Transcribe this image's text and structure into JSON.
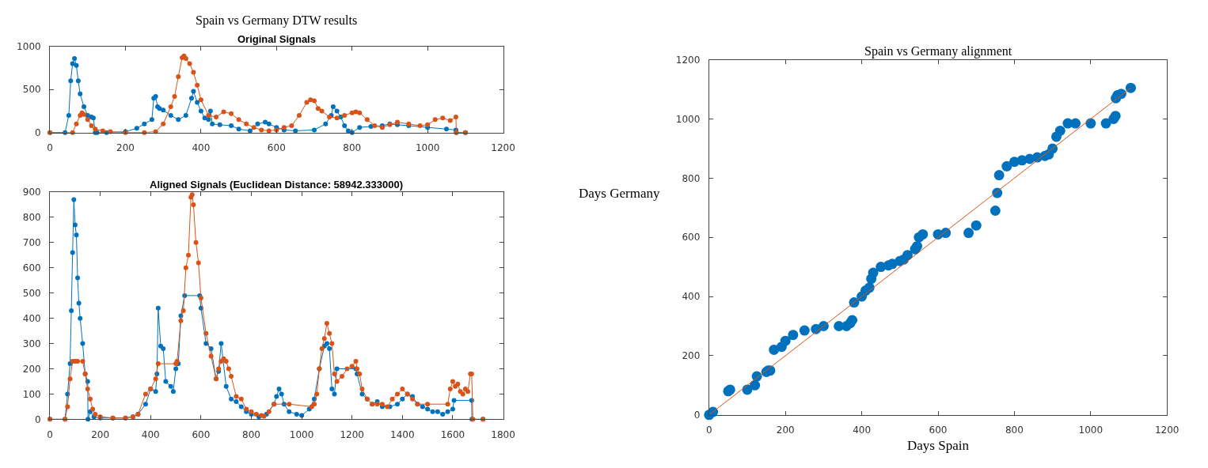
{
  "chart_data": [
    {
      "type": "line",
      "title": "Spain vs Germany DTW results",
      "subtitle": "Original Signals",
      "xlim": [
        0,
        1200
      ],
      "xticks": [
        0,
        200,
        400,
        600,
        800,
        1000,
        1200
      ],
      "ylim": [
        0,
        1000
      ],
      "yticks": [
        0,
        500,
        1000
      ],
      "marker": "circle",
      "line_style": "solid",
      "series": [
        {
          "color": "#0072bd",
          "x": [
            0,
            40,
            50,
            55,
            60,
            65,
            70,
            75,
            80,
            90,
            100,
            110,
            115,
            120,
            125,
            150,
            200,
            230,
            250,
            270,
            275,
            280,
            285,
            290,
            300,
            320,
            340,
            360,
            375,
            380,
            390,
            400,
            410,
            420,
            425,
            430,
            450,
            480,
            500,
            530,
            550,
            570,
            580,
            600,
            620,
            650,
            700,
            730,
            745,
            750,
            760,
            770,
            780,
            790,
            800,
            820,
            850,
            880,
            900,
            920,
            950,
            1000,
            1050,
            1075,
            1076,
            1100
          ],
          "values": [
            0,
            0,
            200,
            600,
            800,
            860,
            780,
            600,
            450,
            300,
            200,
            180,
            170,
            0,
            0,
            0,
            10,
            50,
            100,
            150,
            400,
            420,
            300,
            280,
            260,
            200,
            150,
            200,
            400,
            480,
            350,
            250,
            170,
            150,
            250,
            100,
            90,
            80,
            40,
            20,
            100,
            120,
            100,
            60,
            30,
            20,
            30,
            100,
            200,
            300,
            250,
            180,
            80,
            20,
            0,
            60,
            70,
            80,
            100,
            90,
            80,
            60,
            40,
            30,
            0,
            0
          ]
        },
        {
          "color": "#d95319",
          "x": [
            0,
            60,
            70,
            80,
            85,
            90,
            100,
            110,
            120,
            140,
            160,
            200,
            250,
            280,
            300,
            320,
            330,
            340,
            350,
            355,
            360,
            370,
            380,
            390,
            400,
            420,
            440,
            460,
            480,
            500,
            520,
            540,
            560,
            580,
            600,
            620,
            640,
            660,
            680,
            690,
            700,
            710,
            720,
            740,
            760,
            780,
            800,
            810,
            820,
            840,
            860,
            880,
            900,
            920,
            950,
            980,
            1000,
            1020,
            1040,
            1060,
            1075,
            1076,
            1100
          ],
          "values": [
            0,
            0,
            100,
            200,
            230,
            210,
            150,
            80,
            40,
            20,
            10,
            0,
            0,
            10,
            100,
            300,
            420,
            650,
            870,
            890,
            860,
            800,
            700,
            550,
            380,
            200,
            180,
            240,
            220,
            150,
            100,
            60,
            30,
            20,
            30,
            60,
            80,
            200,
            350,
            380,
            370,
            280,
            250,
            180,
            170,
            200,
            230,
            240,
            230,
            150,
            80,
            60,
            90,
            120,
            100,
            80,
            90,
            150,
            170,
            140,
            180,
            0,
            0
          ]
        }
      ]
    },
    {
      "type": "line",
      "title": "Aligned Signals (Euclidean Distance: 58942.333000)",
      "xlim": [
        0,
        1800
      ],
      "xticks": [
        0,
        200,
        400,
        600,
        800,
        1000,
        1200,
        1400,
        1600,
        1800
      ],
      "ylim": [
        0,
        900
      ],
      "yticks": [
        0,
        100,
        200,
        300,
        400,
        500,
        600,
        700,
        800,
        900
      ],
      "marker": "circle",
      "line_style": "solid",
      "series": [
        {
          "color": "#0072bd",
          "x": [
            0,
            60,
            70,
            80,
            85,
            90,
            95,
            100,
            105,
            110,
            115,
            120,
            130,
            140,
            150,
            151,
            160,
            175,
            200,
            250,
            300,
            330,
            350,
            380,
            400,
            420,
            425,
            430,
            440,
            450,
            460,
            480,
            490,
            500,
            510,
            520,
            535,
            595,
            600,
            620,
            640,
            660,
            670,
            680,
            700,
            720,
            740,
            760,
            780,
            800,
            830,
            860,
            890,
            900,
            910,
            920,
            930,
            950,
            980,
            1000,
            1030,
            1050,
            1070,
            1090,
            1100,
            1110,
            1120,
            1130,
            1140,
            1215,
            1220,
            1240,
            1260,
            1280,
            1300,
            1320,
            1350,
            1380,
            1400,
            1420,
            1440,
            1460,
            1480,
            1500,
            1520,
            1540,
            1560,
            1580,
            1600,
            1605,
            1675,
            1676,
            1720
          ],
          "values": [
            0,
            0,
            100,
            220,
            430,
            660,
            870,
            770,
            730,
            560,
            460,
            400,
            300,
            180,
            150,
            0,
            30,
            10,
            5,
            5,
            5,
            10,
            20,
            60,
            120,
            110,
            180,
            440,
            290,
            280,
            150,
            130,
            110,
            200,
            220,
            410,
            490,
            490,
            440,
            300,
            280,
            160,
            190,
            300,
            130,
            80,
            70,
            50,
            30,
            20,
            10,
            20,
            60,
            90,
            120,
            100,
            60,
            30,
            20,
            15,
            40,
            80,
            200,
            290,
            300,
            280,
            120,
            100,
            200,
            200,
            180,
            100,
            80,
            60,
            70,
            50,
            50,
            60,
            80,
            100,
            90,
            60,
            50,
            40,
            30,
            30,
            20,
            30,
            40,
            75,
            75,
            0,
            0
          ]
        },
        {
          "color": "#d95319",
          "x": [
            0,
            60,
            70,
            80,
            90,
            100,
            110,
            130,
            140,
            150,
            160,
            170,
            180,
            200,
            250,
            300,
            330,
            350,
            380,
            400,
            420,
            430,
            500,
            505,
            520,
            530,
            540,
            550,
            560,
            565,
            570,
            580,
            590,
            600,
            620,
            640,
            660,
            670,
            680,
            690,
            700,
            710,
            720,
            740,
            760,
            780,
            800,
            820,
            840,
            850,
            870,
            890,
            950,
            1040,
            1050,
            1060,
            1070,
            1080,
            1090,
            1100,
            1110,
            1120,
            1130,
            1140,
            1160,
            1180,
            1200,
            1215,
            1220,
            1230,
            1240,
            1260,
            1280,
            1300,
            1320,
            1340,
            1360,
            1380,
            1400,
            1420,
            1440,
            1460,
            1500,
            1580,
            1590,
            1600,
            1610,
            1620,
            1630,
            1640,
            1650,
            1660,
            1670,
            1675,
            1680,
            1720
          ],
          "values": [
            0,
            0,
            50,
            160,
            230,
            230,
            230,
            230,
            180,
            120,
            80,
            40,
            20,
            10,
            5,
            5,
            10,
            20,
            100,
            120,
            160,
            220,
            220,
            230,
            390,
            430,
            600,
            650,
            880,
            890,
            850,
            700,
            620,
            480,
            340,
            250,
            160,
            200,
            230,
            240,
            230,
            200,
            170,
            90,
            80,
            40,
            30,
            20,
            15,
            12,
            30,
            60,
            60,
            50,
            60,
            100,
            200,
            280,
            320,
            380,
            340,
            300,
            180,
            150,
            170,
            200,
            210,
            230,
            200,
            180,
            120,
            80,
            60,
            60,
            60,
            50,
            80,
            100,
            120,
            100,
            80,
            60,
            60,
            60,
            120,
            150,
            130,
            140,
            110,
            100,
            120,
            110,
            180,
            180,
            0,
            0
          ]
        }
      ]
    },
    {
      "type": "scatter",
      "title": "Spain vs Germany alignment",
      "xlabel": "Days Spain",
      "ylabel": "Days Germany",
      "xlim": [
        0,
        1200
      ],
      "xticks": [
        0,
        200,
        400,
        600,
        800,
        1000,
        1200
      ],
      "ylim": [
        0,
        1200
      ],
      "yticks": [
        0,
        200,
        400,
        600,
        800,
        1000,
        1200
      ],
      "marker": "circle",
      "series": [
        {
          "color": "#0072bd",
          "x": [
            0,
            10,
            50,
            55,
            100,
            120,
            125,
            150,
            155,
            160,
            170,
            190,
            200,
            220,
            250,
            280,
            300,
            340,
            360,
            370,
            375,
            380,
            400,
            410,
            420,
            425,
            430,
            450,
            470,
            480,
            500,
            510,
            520,
            540,
            545,
            550,
            560,
            600,
            620,
            680,
            700,
            750,
            755,
            760,
            780,
            800,
            820,
            840,
            860,
            880,
            890,
            900,
            910,
            920,
            940,
            960,
            1000,
            1040,
            1060,
            1065,
            1066,
            1070,
            1080,
            1105
          ],
          "values": [
            0,
            10,
            80,
            85,
            85,
            100,
            130,
            145,
            150,
            150,
            220,
            230,
            250,
            270,
            285,
            290,
            300,
            300,
            300,
            310,
            320,
            380,
            400,
            420,
            430,
            460,
            480,
            500,
            505,
            510,
            520,
            525,
            540,
            560,
            570,
            600,
            610,
            610,
            615,
            615,
            640,
            690,
            750,
            810,
            840,
            855,
            860,
            865,
            870,
            875,
            880,
            900,
            940,
            960,
            985,
            985,
            985,
            985,
            1000,
            1010,
            1070,
            1080,
            1085,
            1105
          ]
        },
        {
          "type": "line",
          "color": "#d95319",
          "marker": "none",
          "x": [
            0,
            1105
          ],
          "values": [
            0,
            1105
          ]
        }
      ]
    }
  ]
}
